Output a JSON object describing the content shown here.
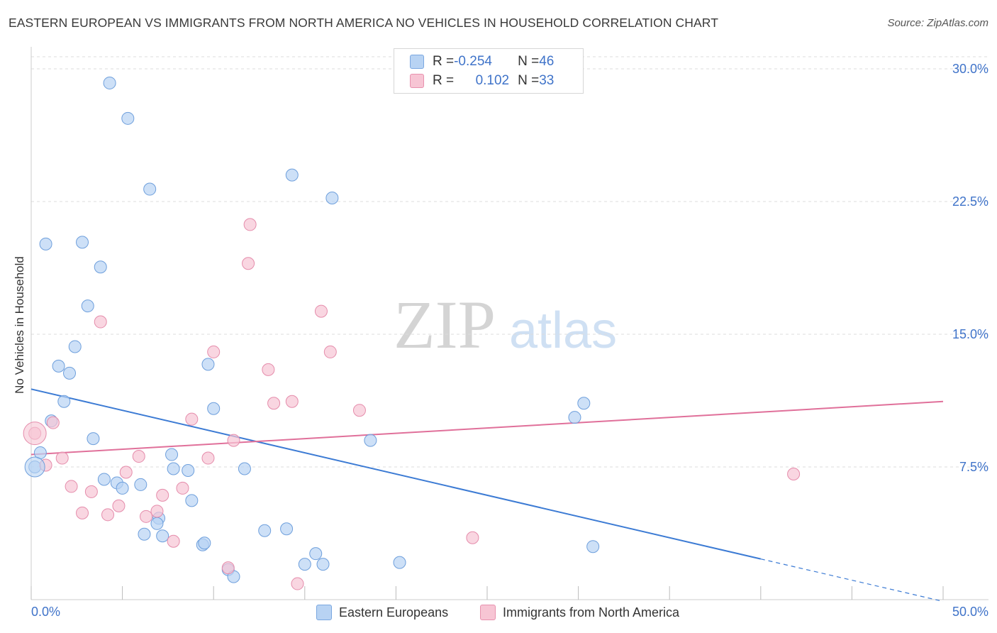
{
  "title": "EASTERN EUROPEAN VS IMMIGRANTS FROM NORTH AMERICA NO VEHICLES IN HOUSEHOLD CORRELATION CHART",
  "source": "Source: ZipAtlas.com",
  "watermark": {
    "zip": "ZIP",
    "atlas": "atlas"
  },
  "colors": {
    "blue": "#3c7bd4",
    "blue_fill": "#b8d3f3",
    "pink": "#e0709a",
    "pink_fill": "#f7c5d4",
    "tick_label": "#3f73c9",
    "grid": "#dcdcdc"
  },
  "legend_top": {
    "rows": [
      {
        "r_label": "R = ",
        "r_value": "-0.254",
        "n_label": "N = ",
        "n_value": "46"
      },
      {
        "r_label": "R = ",
        "r_value": "0.102",
        "n_label": "N = ",
        "n_value": "33"
      }
    ]
  },
  "chart_data": {
    "type": "scatter",
    "title": "EASTERN EUROPEAN VS IMMIGRANTS FROM NORTH AMERICA NO VEHICLES IN HOUSEHOLD CORRELATION CHART",
    "xlabel": "",
    "ylabel": "No Vehicles in Household",
    "xlim": [
      0,
      50
    ],
    "ylim": [
      0,
      30
    ],
    "x_tick_labels": [
      "0.0%",
      "50.0%"
    ],
    "y_ticks": [
      7.5,
      15.0,
      22.5,
      30.0
    ],
    "y_tick_labels": [
      "7.5%",
      "15.0%",
      "22.5%",
      "30.0%"
    ],
    "grid": true,
    "legend_position": "bottom",
    "series": [
      {
        "name": "Eastern Europeans",
        "points": [
          [
            4.3,
            29.2
          ],
          [
            5.3,
            27.2
          ],
          [
            6.5,
            23.2
          ],
          [
            14.3,
            24.0
          ],
          [
            16.5,
            22.7
          ],
          [
            0.8,
            20.1
          ],
          [
            2.8,
            20.2
          ],
          [
            3.8,
            18.8
          ],
          [
            3.1,
            16.6
          ],
          [
            2.4,
            14.3
          ],
          [
            1.5,
            13.2
          ],
          [
            2.1,
            12.8
          ],
          [
            9.7,
            13.3
          ],
          [
            1.8,
            11.2
          ],
          [
            10.0,
            10.8
          ],
          [
            1.1,
            10.1
          ],
          [
            3.4,
            9.1
          ],
          [
            18.6,
            9.0
          ],
          [
            29.8,
            10.3
          ],
          [
            30.3,
            11.1
          ],
          [
            0.5,
            8.3
          ],
          [
            7.7,
            8.2
          ],
          [
            0.2,
            7.5
          ],
          [
            7.8,
            7.4
          ],
          [
            8.6,
            7.3
          ],
          [
            11.7,
            7.4
          ],
          [
            4.0,
            6.8
          ],
          [
            4.7,
            6.6
          ],
          [
            5.0,
            6.3
          ],
          [
            6.0,
            6.5
          ],
          [
            8.8,
            5.6
          ],
          [
            7.0,
            4.6
          ],
          [
            6.9,
            4.3
          ],
          [
            12.8,
            3.9
          ],
          [
            14.0,
            4.0
          ],
          [
            6.2,
            3.7
          ],
          [
            7.2,
            3.6
          ],
          [
            9.4,
            3.1
          ],
          [
            9.5,
            3.2
          ],
          [
            15.6,
            2.6
          ],
          [
            20.2,
            2.1
          ],
          [
            15.0,
            2.0
          ],
          [
            16.0,
            2.0
          ],
          [
            10.8,
            1.7
          ],
          [
            11.1,
            1.3
          ],
          [
            30.8,
            3.0
          ]
        ]
      },
      {
        "name": "Immigrants from North America",
        "points": [
          [
            12.0,
            21.2
          ],
          [
            11.9,
            19.0
          ],
          [
            3.8,
            15.7
          ],
          [
            15.9,
            16.3
          ],
          [
            10.0,
            14.0
          ],
          [
            16.4,
            14.0
          ],
          [
            13.0,
            13.0
          ],
          [
            13.3,
            11.1
          ],
          [
            14.3,
            11.2
          ],
          [
            18.0,
            10.7
          ],
          [
            8.8,
            10.2
          ],
          [
            1.2,
            10.0
          ],
          [
            0.2,
            9.4
          ],
          [
            11.1,
            9.0
          ],
          [
            1.7,
            8.0
          ],
          [
            5.9,
            8.1
          ],
          [
            9.7,
            8.0
          ],
          [
            0.8,
            7.6
          ],
          [
            5.2,
            7.2
          ],
          [
            2.2,
            6.4
          ],
          [
            8.3,
            6.3
          ],
          [
            3.3,
            6.1
          ],
          [
            7.2,
            5.9
          ],
          [
            4.8,
            5.3
          ],
          [
            2.8,
            4.9
          ],
          [
            4.2,
            4.8
          ],
          [
            6.9,
            5.0
          ],
          [
            6.3,
            4.7
          ],
          [
            7.8,
            3.3
          ],
          [
            24.2,
            3.5
          ],
          [
            41.8,
            7.1
          ],
          [
            10.8,
            1.8
          ],
          [
            14.6,
            0.9
          ]
        ]
      }
    ],
    "trend_lines": [
      {
        "series": "Eastern Europeans",
        "x": [
          0,
          40
        ],
        "y": [
          11.9,
          2.3
        ],
        "dashed_extension_x": [
          40,
          50
        ],
        "dashed_extension_y": [
          2.3,
          -0.1
        ]
      },
      {
        "series": "Immigrants from North America",
        "x": [
          0,
          50
        ],
        "y": [
          8.2,
          11.2
        ]
      }
    ]
  },
  "bottom_legend": {
    "items": [
      "Eastern Europeans",
      "Immigrants from North America"
    ]
  }
}
